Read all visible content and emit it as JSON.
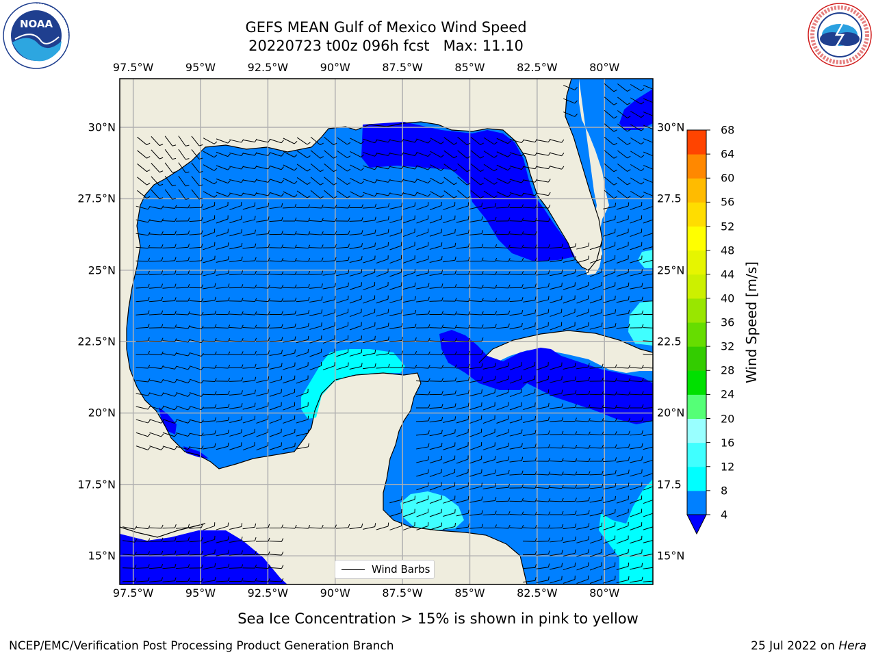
{
  "title": {
    "line1": "GEFS MEAN Gulf of Mexico Wind Speed",
    "line2": "20220723 t00z 096h fcst   Max: 11.10"
  },
  "logos": {
    "noaa": {
      "name": "noaa-logo",
      "text": "NOAA",
      "ring_text": "NATIONAL OCEANIC AND ATMOSPHERIC ADMINISTRATION · U.S. DEPARTMENT OF COMMERCE"
    },
    "nws": {
      "name": "nws-logo",
      "ring_text": "NATIONAL WEATHER SERVICE"
    }
  },
  "map": {
    "lon_labels": [
      "97.5°W",
      "95°W",
      "92.5°W",
      "90°W",
      "87.5°W",
      "85°W",
      "82.5°W",
      "80°W"
    ],
    "lat_labels_left": [
      "30°N",
      "27.5°N",
      "25°N",
      "22.5°N",
      "20°N",
      "17.5°N",
      "15°N"
    ],
    "lat_labels_right": [
      "30°N",
      "27.5",
      "25°N",
      "22.5",
      "20°N",
      "17.5",
      "15°N"
    ],
    "lon_range": [
      -98,
      -78.2
    ],
    "lat_range": [
      14,
      31.7
    ],
    "colors": {
      "land": "#efedde",
      "ws_4_8": "#0080ff",
      "ws_8_12": "#0000ff",
      "ws_calm_blue": "#0000ff",
      "ws_cyan": "#00ffff",
      "ws_aqua": "#40ffff",
      "grid": "#b0b0b0"
    }
  },
  "colorbar": {
    "title": "Wind Speed [m/s]",
    "ticks": [
      "4",
      "8",
      "12",
      "16",
      "20",
      "24",
      "28",
      "32",
      "36",
      "40",
      "44",
      "48",
      "52",
      "56",
      "60",
      "64",
      "68"
    ],
    "colors": [
      "#0080ff",
      "#00ffff",
      "#40ffff",
      "#99ffff",
      "#55ff77",
      "#00e000",
      "#33cc00",
      "#66dd00",
      "#99e600",
      "#ccf000",
      "#e6f500",
      "#ffff00",
      "#ffdd00",
      "#ffbb00",
      "#ff8800",
      "#ff4400",
      "#ff0000"
    ],
    "extend_color": "#0000ff"
  },
  "legend": {
    "label": "Wind Barbs"
  },
  "footnote": "Sea Ice Concentration > 15% is shown in pink to yellow",
  "credit": "NCEP/EMC/Verification Post Processing Product Generation Branch",
  "date": {
    "prefix": "25 Jul 2022 on ",
    "machine": "Hera"
  }
}
